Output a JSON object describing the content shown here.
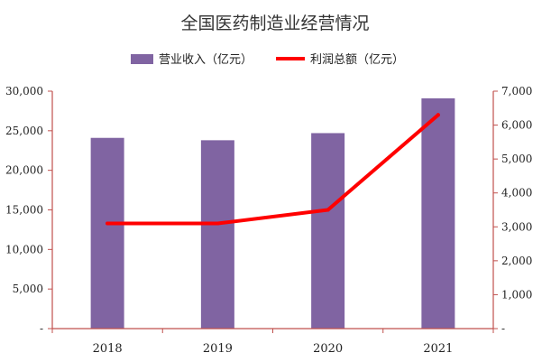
{
  "chart_data": {
    "type": "bar+line",
    "title": "全国医药制造业经营情况",
    "categories": [
      "2018",
      "2019",
      "2020",
      "2021"
    ],
    "series": [
      {
        "name": "营业收入（亿元）",
        "type": "bar",
        "axis": "left",
        "color": "#8064a2",
        "values": [
          24100,
          23800,
          24700,
          29100
        ]
      },
      {
        "name": "利润总额（亿元）",
        "type": "line",
        "axis": "right",
        "color": "#ff0000",
        "values": [
          3100,
          3100,
          3500,
          6300
        ]
      }
    ],
    "y_left": {
      "ylim": [
        0,
        30000
      ],
      "ticks": [
        "-",
        "5,000",
        "10,000",
        "15,000",
        "20,000",
        "25,000",
        "30,000"
      ]
    },
    "y_right": {
      "ylim": [
        0,
        7000
      ],
      "ticks": [
        "-",
        "1,000",
        "2,000",
        "3,000",
        "4,000",
        "5,000",
        "6,000",
        "7,000"
      ]
    },
    "axis_color": "#c0504d",
    "grid": false,
    "legend_position": "top-center"
  }
}
